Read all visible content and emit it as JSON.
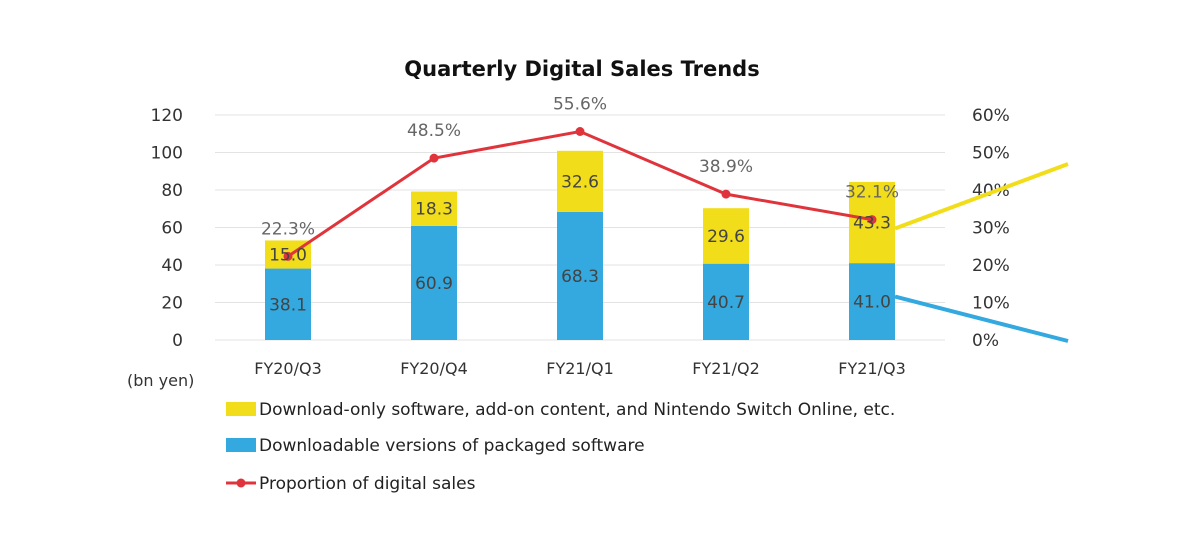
{
  "chart_data": {
    "type": "bar",
    "title": "Quarterly Digital Sales Trends",
    "ylabel": "(bn yen)",
    "categories": [
      "FY20/Q3",
      "FY20/Q4",
      "FY21/Q1",
      "FY21/Q2",
      "FY21/Q3"
    ],
    "stacked": true,
    "ylim": [
      0,
      120
    ],
    "yticks": [
      0,
      20,
      40,
      60,
      80,
      100,
      120
    ],
    "y2lim": [
      0,
      60
    ],
    "y2ticks": [
      "0%",
      "10%",
      "20%",
      "30%",
      "40%",
      "50%",
      "60%"
    ],
    "grid": true,
    "legend_position": "bottom-left",
    "series": [
      {
        "name": "Downloadable versions of packaged software",
        "type": "bar",
        "color": "#33a9e0",
        "values": [
          38.1,
          60.9,
          68.3,
          40.7,
          41.0
        ]
      },
      {
        "name": "Download-only software, add-on content, and Nintendo Switch Online, etc.",
        "type": "bar",
        "color": "#f2dd1a",
        "values": [
          15.0,
          18.3,
          32.6,
          29.6,
          43.3
        ]
      },
      {
        "name": "Proportion of digital sales",
        "type": "line",
        "axis": "secondary",
        "color": "#e0343c",
        "values": [
          22.3,
          48.5,
          55.6,
          38.9,
          32.1
        ],
        "labels": [
          "22.3%",
          "48.5%",
          "55.6%",
          "38.9%",
          "32.1%"
        ]
      }
    ],
    "legend_order": [
      "Download-only software, add-on content, and Nintendo Switch Online, etc.",
      "Downloadable versions of packaged software",
      "Proportion of digital sales"
    ],
    "callout_lines": [
      {
        "series": "Download-only software, add-on content, and Nintendo Switch Online, etc.",
        "color": "#f2dd1a"
      },
      {
        "series": "Downloadable versions of packaged software",
        "color": "#33a9e0"
      }
    ]
  }
}
